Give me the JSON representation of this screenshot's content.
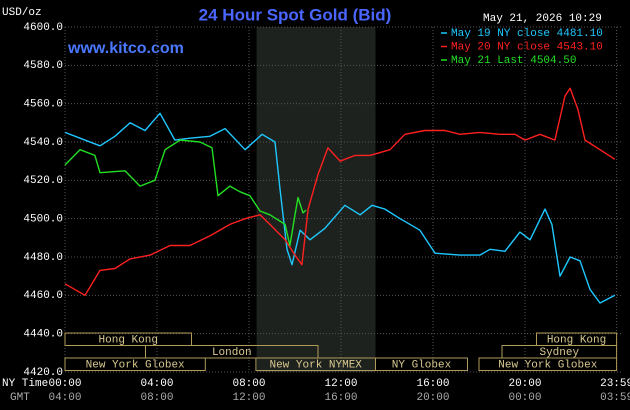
{
  "chart_data": {
    "type": "line",
    "title": "24 Hour Spot Gold (Bid)",
    "unit_label": "USD/oz",
    "timestamp": "May 21, 2026 10:29",
    "watermark": "www.kitco.com",
    "x_axis_label": "NY Time",
    "x2_axis_label": "GMT",
    "xlim": [
      0,
      24
    ],
    "xticks": [
      {
        "value": 0,
        "label": "00:00"
      },
      {
        "value": 4,
        "label": "04:00"
      },
      {
        "value": 8,
        "label": "08:00"
      },
      {
        "value": 12,
        "label": "12:00"
      },
      {
        "value": 16,
        "label": "16:00"
      },
      {
        "value": 20,
        "label": "20:00"
      },
      {
        "value": 23.983,
        "label": "23:59"
      }
    ],
    "x2ticks": [
      "04:00",
      "08:00",
      "12:00",
      "16:00",
      "20:00",
      "00:00",
      "03:59"
    ],
    "ylim": [
      4420,
      4600
    ],
    "yticks": [
      {
        "value": 4420,
        "label": "4420.0"
      },
      {
        "value": 4440,
        "label": "4440.0"
      },
      {
        "value": 4460,
        "label": "4460.0"
      },
      {
        "value": 4480,
        "label": "4480.0"
      },
      {
        "value": 4500,
        "label": "4500.0"
      },
      {
        "value": 4520,
        "label": "4520.0"
      },
      {
        "value": 4540,
        "label": "4540.0"
      },
      {
        "value": 4560,
        "label": "4560.0"
      },
      {
        "value": 4580,
        "label": "4580.0"
      },
      {
        "value": 4600,
        "label": "4600.0"
      }
    ],
    "grid": true,
    "highlight_range": [
      8.33,
      13.5
    ],
    "legend": "top-right",
    "sessions": [
      [
        {
          "label": "Hong Kong",
          "start": 0,
          "end": 5.5
        },
        {
          "label": "Hong Kong",
          "start": 20.5,
          "end": 23.983
        }
      ],
      [
        {
          "label": "London",
          "start": 3.5,
          "end": 11.0
        },
        {
          "label": "Sydney",
          "start": 19.0,
          "end": 23.983
        }
      ],
      [
        {
          "label": "New York Globex",
          "start": 0,
          "end": 6.1
        },
        {
          "label": "New York NYMEX",
          "start": 8.3,
          "end": 13.5
        },
        {
          "label": "NY Globex",
          "start": 13.5,
          "end": 17.5
        },
        {
          "label": "New York Globex",
          "start": 18.0,
          "end": 23.983
        }
      ]
    ],
    "series": [
      {
        "name": "May 19 NY close 4481.10",
        "color": "#1ec8ff",
        "x": [
          0,
          0.65,
          1.52,
          2.17,
          2.83,
          3.48,
          4.13,
          4.78,
          5.43,
          6.3,
          6.96,
          7.83,
          8.57,
          9.13,
          9.35,
          9.65,
          9.87,
          10.22,
          10.65,
          11.3,
          12.17,
          12.83,
          13.35,
          13.91,
          14.57,
          15.43,
          16.09,
          17.17,
          18.04,
          18.48,
          19.13,
          19.78,
          20.22,
          20.87,
          21.17,
          21.52,
          21.96,
          22.39,
          22.83,
          23.26,
          23.91
        ],
        "values": [
          4545,
          4542,
          4538,
          4543,
          4550,
          4546,
          4555,
          4541,
          4542,
          4543,
          4547,
          4536,
          4544,
          4540,
          4515,
          4484,
          4476,
          4494,
          4489,
          4495,
          4507,
          4502,
          4507,
          4505,
          4500,
          4494,
          4482,
          4481,
          4481,
          4484,
          4483,
          4493,
          4489,
          4505,
          4497,
          4470,
          4480,
          4478,
          4463,
          4456,
          4460
        ]
      },
      {
        "name": "May 20 NY close 4543.10",
        "color": "#ff2020",
        "x": [
          0,
          0.87,
          1.52,
          2.17,
          2.83,
          3.7,
          4.57,
          5.43,
          6.3,
          7.17,
          7.83,
          8.48,
          8.91,
          9.57,
          10.0,
          10.3,
          10.57,
          11.0,
          11.43,
          11.96,
          12.61,
          13.26,
          14.13,
          14.78,
          15.65,
          16.52,
          17.17,
          18.04,
          18.91,
          19.57,
          20.0,
          20.65,
          21.3,
          21.74,
          21.96,
          22.3,
          22.61,
          23.26,
          23.91
        ],
        "values": [
          4466,
          4460,
          4473,
          4474,
          4479,
          4481,
          4486,
          4486,
          4491,
          4497,
          4500,
          4502,
          4497,
          4489,
          4481,
          4476,
          4505,
          4523,
          4537,
          4530,
          4533,
          4533,
          4536,
          4544,
          4546,
          4546,
          4544,
          4545,
          4544,
          4544,
          4541,
          4544,
          4541,
          4564,
          4568,
          4557,
          4541,
          4536,
          4531
        ]
      },
      {
        "name": "May 21 Last 4504.50",
        "color": "#22e022",
        "x": [
          0,
          0.65,
          1.3,
          1.52,
          2.61,
          3.26,
          3.91,
          4.35,
          5.0,
          5.87,
          6.39,
          6.65,
          7.17,
          7.61,
          8.04,
          8.48,
          8.91,
          9.57,
          9.78,
          10.0,
          10.13,
          10.35,
          10.48
        ],
        "values": [
          4528,
          4536,
          4533,
          4524,
          4525,
          4517,
          4520,
          4536,
          4541,
          4540,
          4537,
          4512,
          4517,
          4514,
          4512,
          4504,
          4502,
          4497,
          4486,
          4502,
          4511,
          4503,
          4504.5
        ]
      }
    ]
  }
}
